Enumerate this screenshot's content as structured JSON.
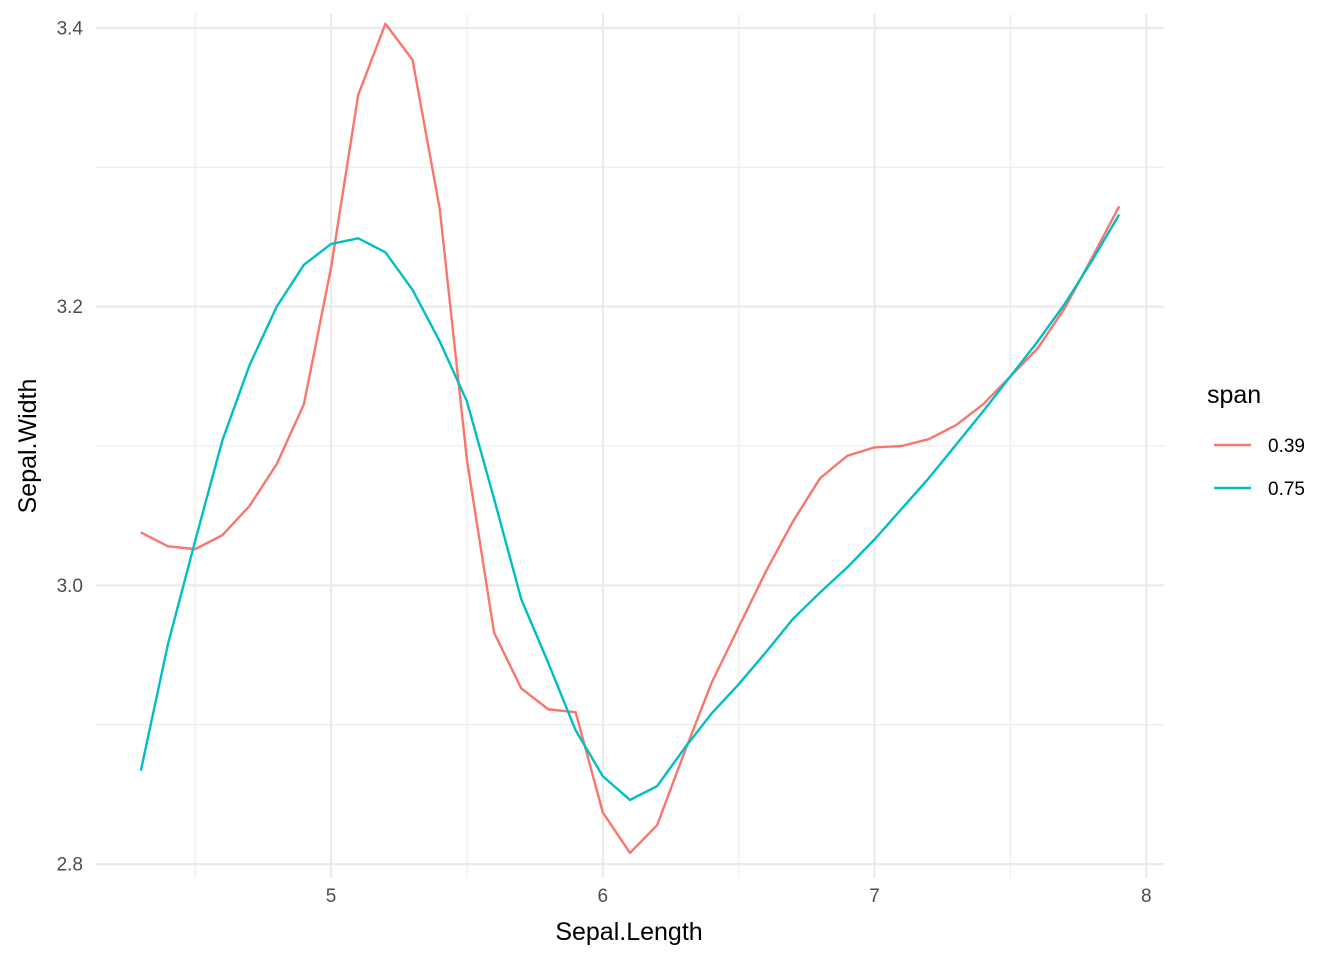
{
  "chart_data": {
    "type": "line",
    "xlabel": "Sepal.Length",
    "ylabel": "Sepal.Width",
    "xlim": [
      4.135,
      8.065
    ],
    "ylim": [
      2.79,
      3.41
    ],
    "x_ticks": [
      5,
      6,
      7,
      8
    ],
    "x_minor_ticks": [
      4.5,
      5.5,
      6.5,
      7.5
    ],
    "y_ticks": [
      2.8,
      3.0,
      3.2,
      3.4
    ],
    "y_minor_ticks": [
      2.9,
      3.1,
      3.3
    ],
    "x_tick_labels": [
      "5",
      "6",
      "7",
      "8"
    ],
    "y_tick_labels": [
      "2.8",
      "3.0",
      "3.2",
      "3.4"
    ],
    "grid": true,
    "legend": {
      "title": "span",
      "position": "right"
    },
    "x": [
      4.3,
      4.4,
      4.5,
      4.6,
      4.7,
      4.8,
      4.9,
      5.0,
      5.1,
      5.2,
      5.3,
      5.4,
      5.5,
      5.6,
      5.7,
      5.8,
      5.9,
      6.0,
      6.1,
      6.2,
      6.3,
      6.4,
      6.5,
      6.6,
      6.7,
      6.8,
      6.9,
      7.0,
      7.1,
      7.2,
      7.3,
      7.4,
      7.5,
      7.6,
      7.7,
      7.8,
      7.9
    ],
    "series": [
      {
        "name": "0.39",
        "color": "#F8766D",
        "values": [
          3.038,
          3.028,
          3.026,
          3.036,
          3.057,
          3.087,
          3.13,
          3.228,
          3.352,
          3.403,
          3.377,
          3.27,
          3.09,
          2.966,
          2.926,
          2.911,
          2.909,
          2.837,
          2.808,
          2.828,
          2.88,
          2.93,
          2.97,
          3.01,
          3.046,
          3.077,
          3.093,
          3.099,
          3.1,
          3.105,
          3.115,
          3.13,
          3.15,
          3.17,
          3.199,
          3.235,
          3.272
        ]
      },
      {
        "name": "0.75",
        "color": "#00BFC4",
        "values": [
          2.867,
          2.958,
          3.032,
          3.104,
          3.158,
          3.2,
          3.23,
          3.245,
          3.249,
          3.239,
          3.212,
          3.175,
          3.132,
          3.062,
          2.99,
          2.944,
          2.896,
          2.863,
          2.846,
          2.856,
          2.883,
          2.908,
          2.929,
          2.952,
          2.976,
          2.995,
          3.013,
          3.033,
          3.055,
          3.077,
          3.101,
          3.125,
          3.15,
          3.175,
          3.202,
          3.233,
          3.266
        ]
      }
    ]
  }
}
